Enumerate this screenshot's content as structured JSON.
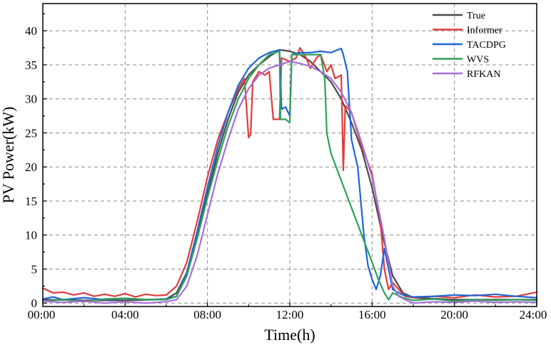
{
  "chart_data": {
    "type": "line",
    "title": "",
    "xlabel": "Time(h)",
    "ylabel": "PV Power(kW)",
    "xlim": [
      0,
      24
    ],
    "ylim": [
      -0.5,
      44
    ],
    "grid": true,
    "legend_position": "top-right",
    "x_ticks": [
      {
        "value": 0,
        "label": "00:00"
      },
      {
        "value": 4,
        "label": "04:00"
      },
      {
        "value": 8,
        "label": "08:00"
      },
      {
        "value": 12,
        "label": "12:00"
      },
      {
        "value": 16,
        "label": "16:00"
      },
      {
        "value": 20,
        "label": "20:00"
      },
      {
        "value": 24,
        "label": "24:00"
      }
    ],
    "y_ticks": [
      {
        "value": 0,
        "label": "0"
      },
      {
        "value": 5,
        "label": "5"
      },
      {
        "value": 10,
        "label": "10"
      },
      {
        "value": 15,
        "label": "15"
      },
      {
        "value": 20,
        "label": "20"
      },
      {
        "value": 25,
        "label": "25"
      },
      {
        "value": 30,
        "label": "30"
      },
      {
        "value": 35,
        "label": "35"
      },
      {
        "value": 40,
        "label": "40"
      }
    ],
    "series": [
      {
        "name": "True",
        "color": "#4a4a4a",
        "points": [
          [
            0,
            0.5
          ],
          [
            2,
            0.4
          ],
          [
            4,
            0.4
          ],
          [
            5.5,
            0.5
          ],
          [
            6,
            0.6
          ],
          [
            6.5,
            1.5
          ],
          [
            7,
            4.5
          ],
          [
            7.5,
            10
          ],
          [
            8,
            16
          ],
          [
            8.5,
            22
          ],
          [
            9,
            27
          ],
          [
            9.5,
            31
          ],
          [
            10,
            33.5
          ],
          [
            10.5,
            35
          ],
          [
            11,
            36.2
          ],
          [
            11.5,
            37.2
          ],
          [
            12,
            37
          ],
          [
            12.5,
            36.5
          ],
          [
            13,
            35.5
          ],
          [
            13.5,
            34
          ],
          [
            14,
            32.5
          ],
          [
            14.5,
            30
          ],
          [
            15,
            26.5
          ],
          [
            15.5,
            22.5
          ],
          [
            16,
            17
          ],
          [
            16.5,
            10
          ],
          [
            17,
            4
          ],
          [
            17.5,
            1.5
          ],
          [
            18,
            0.8
          ],
          [
            20,
            0.5
          ],
          [
            24,
            0.5
          ]
        ]
      },
      {
        "name": "Informer",
        "color": "#e03c3c",
        "points": [
          [
            0,
            2.2
          ],
          [
            0.5,
            1.5
          ],
          [
            1,
            1.6
          ],
          [
            1.5,
            1.2
          ],
          [
            2,
            1.5
          ],
          [
            2.5,
            1.0
          ],
          [
            3,
            1.3
          ],
          [
            3.5,
            1.0
          ],
          [
            4,
            1.4
          ],
          [
            4.5,
            0.9
          ],
          [
            5,
            1.3
          ],
          [
            5.5,
            1.1
          ],
          [
            6,
            1.2
          ],
          [
            6.5,
            2.5
          ],
          [
            7,
            6
          ],
          [
            7.5,
            12
          ],
          [
            8,
            18.5
          ],
          [
            8.5,
            24
          ],
          [
            9,
            28
          ],
          [
            9.5,
            31.5
          ],
          [
            9.8,
            33
          ],
          [
            10,
            24.3
          ],
          [
            10.1,
            24.8
          ],
          [
            10.2,
            32.5
          ],
          [
            10.5,
            34
          ],
          [
            10.8,
            33.5
          ],
          [
            11,
            34
          ],
          [
            11.2,
            27
          ],
          [
            11.5,
            27
          ],
          [
            11.6,
            36
          ],
          [
            12,
            35.5
          ],
          [
            12.3,
            36
          ],
          [
            12.5,
            37.5
          ],
          [
            12.8,
            36
          ],
          [
            13,
            34.5
          ],
          [
            13.3,
            36
          ],
          [
            13.5,
            36.5
          ],
          [
            13.8,
            34
          ],
          [
            14,
            35
          ],
          [
            14.2,
            33
          ],
          [
            14.5,
            33.5
          ],
          [
            14.6,
            19.5
          ],
          [
            14.7,
            29
          ],
          [
            15,
            28
          ],
          [
            15.5,
            23
          ],
          [
            16,
            19
          ],
          [
            16.4,
            12
          ],
          [
            16.6,
            5
          ],
          [
            16.8,
            2
          ],
          [
            17,
            3
          ],
          [
            17.3,
            2
          ],
          [
            17.6,
            1
          ],
          [
            18,
            0.8
          ],
          [
            19,
            1.0
          ],
          [
            20,
            0.8
          ],
          [
            21,
            1.2
          ],
          [
            22,
            0.9
          ],
          [
            23,
            1.0
          ],
          [
            24,
            1.6
          ]
        ]
      },
      {
        "name": "TACDPG",
        "color": "#1f66d6",
        "points": [
          [
            0,
            0.6
          ],
          [
            0.5,
            0.9
          ],
          [
            1,
            0.5
          ],
          [
            2,
            0.8
          ],
          [
            3,
            0.5
          ],
          [
            4,
            0.7
          ],
          [
            5,
            0.5
          ],
          [
            6,
            0.6
          ],
          [
            6.5,
            1.0
          ],
          [
            7,
            4.5
          ],
          [
            7.5,
            10.5
          ],
          [
            8,
            17
          ],
          [
            8.5,
            23
          ],
          [
            9,
            28
          ],
          [
            9.5,
            32
          ],
          [
            10,
            34.5
          ],
          [
            10.5,
            36
          ],
          [
            11,
            36.8
          ],
          [
            11.5,
            37.2
          ],
          [
            11.6,
            28.5
          ],
          [
            11.8,
            28.8
          ],
          [
            12,
            27.5
          ],
          [
            12.1,
            36.5
          ],
          [
            12.5,
            36.8
          ],
          [
            13,
            36.8
          ],
          [
            13.5,
            37
          ],
          [
            14,
            36.8
          ],
          [
            14.5,
            37.4
          ],
          [
            14.6,
            36.5
          ],
          [
            14.8,
            34
          ],
          [
            15,
            24
          ],
          [
            15.3,
            20
          ],
          [
            15.6,
            10
          ],
          [
            15.8,
            5.5
          ],
          [
            16,
            3.5
          ],
          [
            16.2,
            2
          ],
          [
            16.4,
            4
          ],
          [
            16.6,
            8
          ],
          [
            16.8,
            5
          ],
          [
            17,
            2
          ],
          [
            17.5,
            1.2
          ],
          [
            18,
            0.9
          ],
          [
            19,
            1.0
          ],
          [
            20,
            1.2
          ],
          [
            21,
            1.1
          ],
          [
            22,
            1.3
          ],
          [
            23,
            1.0
          ],
          [
            24,
            0.8
          ]
        ]
      },
      {
        "name": "WVS",
        "color": "#2ea05a",
        "points": [
          [
            0,
            0.3
          ],
          [
            1,
            0.5
          ],
          [
            2,
            0.2
          ],
          [
            3,
            0.6
          ],
          [
            4,
            0.7
          ],
          [
            5,
            0.5
          ],
          [
            6,
            0.5
          ],
          [
            6.5,
            1.0
          ],
          [
            7,
            4
          ],
          [
            7.5,
            9.5
          ],
          [
            8,
            15.5
          ],
          [
            8.5,
            21
          ],
          [
            9,
            26
          ],
          [
            9.5,
            30
          ],
          [
            10,
            33
          ],
          [
            10.5,
            35
          ],
          [
            11,
            36.5
          ],
          [
            11.5,
            37
          ],
          [
            11.55,
            27
          ],
          [
            11.8,
            27
          ],
          [
            12,
            26.5
          ],
          [
            12.1,
            36.5
          ],
          [
            12.5,
            36.5
          ],
          [
            13,
            36.5
          ],
          [
            13.5,
            36.5
          ],
          [
            13.7,
            33
          ],
          [
            13.8,
            25
          ],
          [
            14,
            22
          ],
          [
            14.5,
            18
          ],
          [
            15,
            14
          ],
          [
            15.5,
            10
          ],
          [
            16,
            6
          ],
          [
            16.3,
            3.5
          ],
          [
            16.6,
            1.5
          ],
          [
            16.8,
            0.5
          ],
          [
            17,
            1.5
          ],
          [
            17.5,
            0.8
          ],
          [
            18,
            0.4
          ],
          [
            19,
            0.6
          ],
          [
            20,
            0.3
          ],
          [
            21,
            0.5
          ],
          [
            22,
            0.4
          ],
          [
            23,
            0.5
          ],
          [
            24,
            0.4
          ]
        ]
      },
      {
        "name": "RFKAN",
        "color": "#a66fd8",
        "points": [
          [
            0,
            0.3
          ],
          [
            1,
            0.1
          ],
          [
            2,
            0.3
          ],
          [
            3,
            0.0
          ],
          [
            4,
            0.2
          ],
          [
            5,
            0.0
          ],
          [
            6,
            0.2
          ],
          [
            6.5,
            0.5
          ],
          [
            7,
            2.5
          ],
          [
            7.5,
            7
          ],
          [
            8,
            13
          ],
          [
            8.5,
            19
          ],
          [
            9,
            24
          ],
          [
            9.5,
            28.5
          ],
          [
            10,
            31.5
          ],
          [
            10.5,
            33.5
          ],
          [
            11,
            34.5
          ],
          [
            11.5,
            35
          ],
          [
            12,
            35.5
          ],
          [
            12.5,
            35.2
          ],
          [
            13,
            34.8
          ],
          [
            13.5,
            34
          ],
          [
            14,
            33
          ],
          [
            14.5,
            31
          ],
          [
            15,
            28
          ],
          [
            15.5,
            23.5
          ],
          [
            16,
            18.5
          ],
          [
            16.5,
            11
          ],
          [
            16.8,
            6
          ],
          [
            17,
            2.5
          ],
          [
            17.3,
            1.0
          ],
          [
            17.6,
            0.5
          ],
          [
            18,
            0.0
          ],
          [
            19,
            0.2
          ],
          [
            20,
            0.1
          ],
          [
            21,
            0.3
          ],
          [
            22,
            0.1
          ],
          [
            23,
            0.2
          ],
          [
            24,
            0.1
          ]
        ]
      }
    ]
  }
}
